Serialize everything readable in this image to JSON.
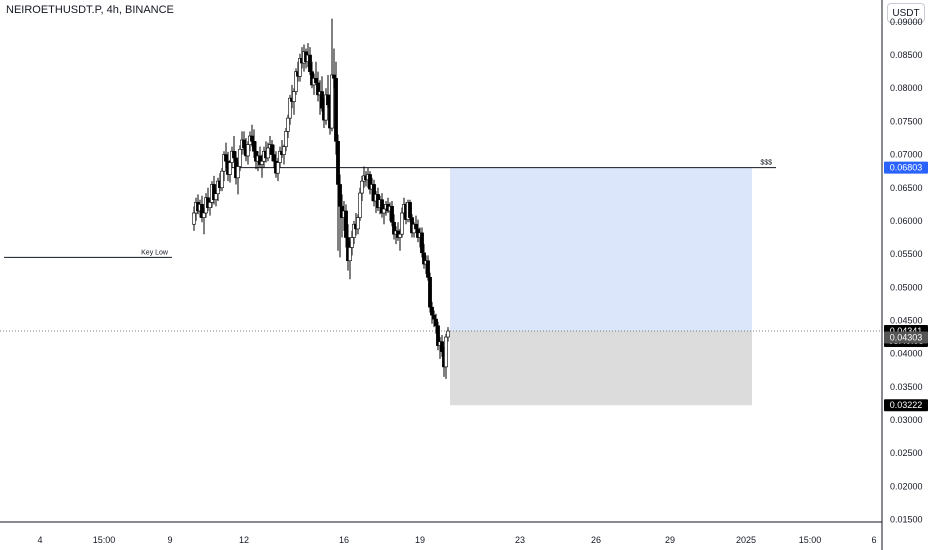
{
  "header": {
    "title": "NEIROETHUSDT.P, 4h, BINANCE",
    "currency": "USDT"
  },
  "colors": {
    "candle_up": "#ffffff",
    "candle_down": "#000000",
    "wick": "#000000",
    "target_zone": "#dbe6fb",
    "stop_zone": "#dcdcdc",
    "target_tag": "#2962ff",
    "price_tag": "#000000",
    "stop_tag": "#000000"
  },
  "chart_data": {
    "type": "candlestick",
    "ylim": [
      0.011,
      0.093
    ],
    "y_ticks": [
      "0.09000",
      "0.08500",
      "0.08000",
      "0.07500",
      "0.07000",
      "0.06500",
      "0.06000",
      "0.05500",
      "0.05000",
      "0.04500",
      "0.04000",
      "0.03500",
      "0.03000",
      "0.02500",
      "0.02000",
      "0.01500"
    ],
    "x_ticks": [
      {
        "label": "4",
        "i": 18
      },
      {
        "label": "15:00",
        "i": 50
      },
      {
        "label": "9",
        "i": 83
      },
      {
        "label": "12",
        "i": 120
      },
      {
        "label": "16",
        "i": 170
      },
      {
        "label": "19",
        "i": 208
      },
      {
        "label": "23",
        "i": 258
      },
      {
        "label": "26",
        "i": 296
      },
      {
        "label": "29",
        "i": 333
      },
      {
        "label": "2025",
        "i": 371
      },
      {
        "label": "15:00",
        "i": 403
      },
      {
        "label": "6",
        "i": 435
      }
    ],
    "ohlc": [
      [
        0.0595,
        0.0622,
        0.0585,
        0.0612
      ],
      [
        0.0612,
        0.0635,
        0.06,
        0.0628
      ],
      [
        0.0628,
        0.064,
        0.061,
        0.0615
      ],
      [
        0.0615,
        0.0632,
        0.0605,
        0.0625
      ],
      [
        0.0625,
        0.0638,
        0.0598,
        0.0605
      ],
      [
        0.0605,
        0.062,
        0.058,
        0.0612
      ],
      [
        0.0612,
        0.0642,
        0.0605,
        0.0635
      ],
      [
        0.0635,
        0.065,
        0.0615,
        0.062
      ],
      [
        0.062,
        0.0632,
        0.0608,
        0.0628
      ],
      [
        0.0628,
        0.066,
        0.062,
        0.0655
      ],
      [
        0.0655,
        0.0668,
        0.0625,
        0.0632
      ],
      [
        0.0632,
        0.0648,
        0.0622,
        0.0641
      ],
      [
        0.0641,
        0.0665,
        0.063,
        0.066
      ],
      [
        0.066,
        0.0672,
        0.0645,
        0.065
      ],
      [
        0.065,
        0.068,
        0.0645,
        0.0675
      ],
      [
        0.0675,
        0.0705,
        0.066,
        0.07
      ],
      [
        0.07,
        0.0718,
        0.068,
        0.069
      ],
      [
        0.069,
        0.0704,
        0.066,
        0.067
      ],
      [
        0.067,
        0.0692,
        0.0658,
        0.0688
      ],
      [
        0.0688,
        0.0712,
        0.068,
        0.0705
      ],
      [
        0.0705,
        0.0728,
        0.069,
        0.0695
      ],
      [
        0.0695,
        0.0705,
        0.0655,
        0.0665
      ],
      [
        0.0665,
        0.069,
        0.064,
        0.0682
      ],
      [
        0.0682,
        0.0714,
        0.0675,
        0.0708
      ],
      [
        0.0708,
        0.0735,
        0.07,
        0.0722
      ],
      [
        0.0722,
        0.0735,
        0.07,
        0.071
      ],
      [
        0.071,
        0.0725,
        0.069,
        0.0698
      ],
      [
        0.0698,
        0.072,
        0.0685,
        0.0715
      ],
      [
        0.0715,
        0.0735,
        0.0705,
        0.0728
      ],
      [
        0.0728,
        0.0745,
        0.0712,
        0.072
      ],
      [
        0.072,
        0.0738,
        0.0695,
        0.0705
      ],
      [
        0.0705,
        0.072,
        0.0678,
        0.069
      ],
      [
        0.069,
        0.0705,
        0.0675,
        0.0698
      ],
      [
        0.0698,
        0.0712,
        0.068,
        0.0685
      ],
      [
        0.0685,
        0.07,
        0.0665,
        0.069
      ],
      [
        0.069,
        0.0712,
        0.068,
        0.0705
      ],
      [
        0.0705,
        0.072,
        0.0688,
        0.0695
      ],
      [
        0.0695,
        0.0718,
        0.069,
        0.071
      ],
      [
        0.071,
        0.0728,
        0.07,
        0.0715
      ],
      [
        0.0715,
        0.0722,
        0.069,
        0.07
      ],
      [
        0.07,
        0.0715,
        0.068,
        0.069
      ],
      [
        0.069,
        0.0705,
        0.0665,
        0.0672
      ],
      [
        0.0672,
        0.0695,
        0.066,
        0.0688
      ],
      [
        0.0688,
        0.0712,
        0.068,
        0.0705
      ],
      [
        0.0705,
        0.0722,
        0.0695,
        0.07
      ],
      [
        0.07,
        0.0715,
        0.0685,
        0.0712
      ],
      [
        0.0712,
        0.074,
        0.0705,
        0.0735
      ],
      [
        0.0735,
        0.076,
        0.0725,
        0.0755
      ],
      [
        0.0755,
        0.079,
        0.0745,
        0.0785
      ],
      [
        0.0785,
        0.0805,
        0.077,
        0.078
      ],
      [
        0.078,
        0.08,
        0.076,
        0.0795
      ],
      [
        0.0795,
        0.083,
        0.079,
        0.0825
      ],
      [
        0.0825,
        0.084,
        0.081,
        0.0818
      ],
      [
        0.0818,
        0.0852,
        0.081,
        0.0845
      ],
      [
        0.0845,
        0.0862,
        0.083,
        0.0838
      ],
      [
        0.0838,
        0.0866,
        0.0825,
        0.0855
      ],
      [
        0.0855,
        0.086,
        0.083,
        0.084
      ],
      [
        0.084,
        0.0868,
        0.0832,
        0.085
      ],
      [
        0.085,
        0.0862,
        0.082,
        0.0825
      ],
      [
        0.0825,
        0.084,
        0.08,
        0.0805
      ],
      [
        0.0805,
        0.0822,
        0.079,
        0.0815
      ],
      [
        0.0815,
        0.084,
        0.081,
        0.0808
      ],
      [
        0.0808,
        0.0825,
        0.078,
        0.079
      ],
      [
        0.079,
        0.0812,
        0.076,
        0.0795
      ],
      [
        0.0795,
        0.0818,
        0.0765,
        0.077
      ],
      [
        0.077,
        0.0785,
        0.074,
        0.0752
      ],
      [
        0.0752,
        0.08,
        0.0745,
        0.079
      ],
      [
        0.079,
        0.082,
        0.077,
        0.0775
      ],
      [
        0.0775,
        0.079,
        0.073,
        0.074
      ],
      [
        0.074,
        0.0905,
        0.0735,
        0.082
      ],
      [
        0.082,
        0.086,
        0.08,
        0.0815
      ],
      [
        0.0815,
        0.084,
        0.07,
        0.072
      ],
      [
        0.072,
        0.073,
        0.0555,
        0.0655
      ],
      [
        0.0655,
        0.067,
        0.0545,
        0.0622
      ],
      [
        0.0622,
        0.064,
        0.0575,
        0.0605
      ],
      [
        0.0605,
        0.063,
        0.0585,
        0.0615
      ],
      [
        0.0615,
        0.0625,
        0.056,
        0.0575
      ],
      [
        0.0575,
        0.0595,
        0.0525,
        0.054
      ],
      [
        0.054,
        0.057,
        0.0512,
        0.056
      ],
      [
        0.056,
        0.0585,
        0.0548,
        0.0575
      ],
      [
        0.0575,
        0.06,
        0.0565,
        0.0595
      ],
      [
        0.0595,
        0.0612,
        0.0578,
        0.0588
      ],
      [
        0.0588,
        0.061,
        0.058,
        0.0605
      ],
      [
        0.0605,
        0.065,
        0.06,
        0.0642
      ],
      [
        0.0642,
        0.0668,
        0.063,
        0.066
      ],
      [
        0.066,
        0.0682,
        0.065,
        0.0668
      ],
      [
        0.0668,
        0.0675,
        0.0652,
        0.0662
      ],
      [
        0.0662,
        0.068,
        0.065,
        0.067
      ],
      [
        0.067,
        0.0675,
        0.064,
        0.0648
      ],
      [
        0.0648,
        0.0665,
        0.063,
        0.0655
      ],
      [
        0.0655,
        0.0662,
        0.0622,
        0.063
      ],
      [
        0.063,
        0.0645,
        0.0612,
        0.064
      ],
      [
        0.064,
        0.065,
        0.0615,
        0.062
      ],
      [
        0.062,
        0.0638,
        0.061,
        0.0632
      ],
      [
        0.0632,
        0.0642,
        0.0605,
        0.0612
      ],
      [
        0.0612,
        0.0625,
        0.0595,
        0.0618
      ],
      [
        0.0618,
        0.063,
        0.0608,
        0.0625
      ],
      [
        0.0625,
        0.0635,
        0.0612,
        0.0615
      ],
      [
        0.0615,
        0.0628,
        0.06,
        0.0622
      ],
      [
        0.0622,
        0.063,
        0.0592,
        0.0598
      ],
      [
        0.0598,
        0.061,
        0.0572,
        0.058
      ],
      [
        0.058,
        0.0592,
        0.0565,
        0.0585
      ],
      [
        0.0585,
        0.0598,
        0.057,
        0.0575
      ],
      [
        0.0575,
        0.0588,
        0.0555,
        0.058
      ],
      [
        0.058,
        0.062,
        0.0575,
        0.0612
      ],
      [
        0.0612,
        0.0635,
        0.0605,
        0.0625
      ],
      [
        0.0625,
        0.0628,
        0.0595,
        0.0602
      ],
      [
        0.0602,
        0.0632,
        0.0598,
        0.0628
      ],
      [
        0.0628,
        0.0632,
        0.0598,
        0.0605
      ],
      [
        0.0605,
        0.061,
        0.0575,
        0.0582
      ],
      [
        0.0582,
        0.0598,
        0.0575,
        0.0595
      ],
      [
        0.0595,
        0.0608,
        0.0582,
        0.0588
      ],
      [
        0.0588,
        0.0602,
        0.0568,
        0.0575
      ],
      [
        0.0575,
        0.059,
        0.056,
        0.0582
      ],
      [
        0.0582,
        0.059,
        0.0545,
        0.0552
      ],
      [
        0.0552,
        0.0565,
        0.0528,
        0.0535
      ],
      [
        0.0535,
        0.0548,
        0.052,
        0.054
      ],
      [
        0.054,
        0.0548,
        0.051,
        0.0515
      ],
      [
        0.0515,
        0.0522,
        0.0462,
        0.047
      ],
      [
        0.047,
        0.0478,
        0.0445,
        0.0458
      ],
      [
        0.0458,
        0.0465,
        0.044,
        0.0452
      ],
      [
        0.0452,
        0.046,
        0.043,
        0.0442
      ],
      [
        0.0442,
        0.0448,
        0.0405,
        0.0412
      ],
      [
        0.0412,
        0.0425,
        0.0392,
        0.0418
      ],
      [
        0.0418,
        0.0428,
        0.0395,
        0.0403
      ],
      [
        0.0403,
        0.041,
        0.0365,
        0.038
      ],
      [
        0.038,
        0.043,
        0.0362,
        0.0425
      ],
      [
        0.0425,
        0.044,
        0.0418,
        0.0434
      ]
    ],
    "annotations": [
      {
        "text": "Key Low",
        "price": 0.0545,
        "from_i": 0,
        "to_i": 84
      },
      {
        "text": "$$$",
        "price": 0.06803,
        "from_i": 110,
        "to_i": 386
      }
    ],
    "position": {
      "from_i": 223,
      "to_i": 374,
      "entry": 0.04341,
      "target": 0.06803,
      "stop": 0.03222
    },
    "price_tags": [
      {
        "label": "0.06803",
        "price": 0.06803,
        "kind": "target"
      },
      {
        "label": "0.04341",
        "sub": "03:49:08",
        "price": 0.04341,
        "kind": "last"
      },
      {
        "label": "0.04303",
        "price": 0.04303,
        "kind": "prev"
      },
      {
        "label": "0.03222",
        "price": 0.03222,
        "kind": "stop"
      }
    ]
  }
}
